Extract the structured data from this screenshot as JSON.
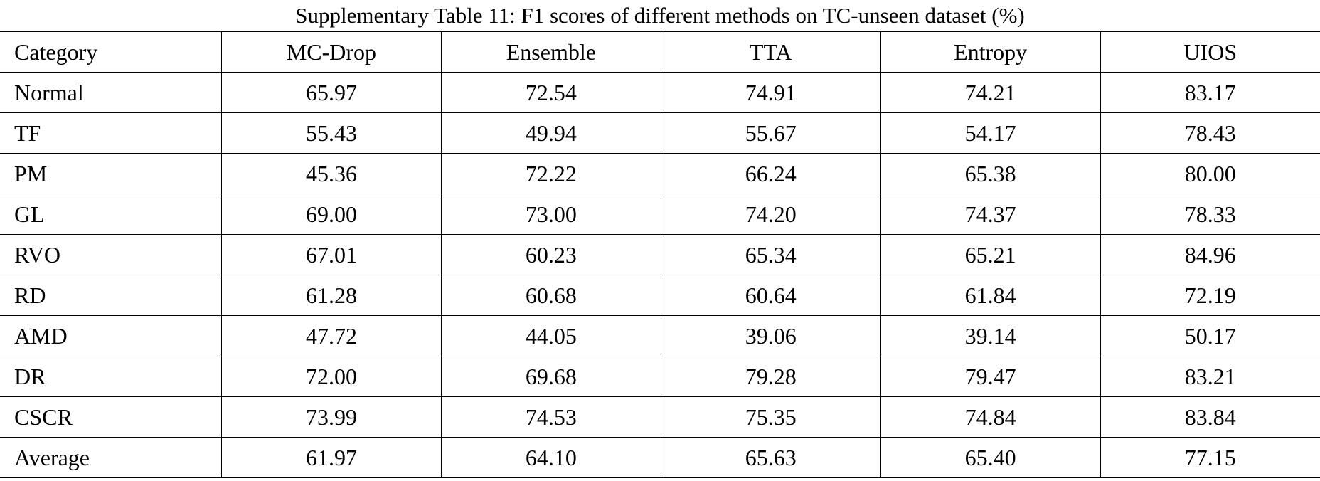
{
  "title": "Supplementary Table 11: F1 scores of different methods on TC-unseen dataset (%)",
  "table": {
    "columns": [
      "Category",
      "MC-Drop",
      "Ensemble",
      "TTA",
      "Entropy",
      "UIOS"
    ],
    "rows": [
      [
        "Normal",
        "65.97",
        "72.54",
        "74.91",
        "74.21",
        "83.17"
      ],
      [
        "TF",
        "55.43",
        "49.94",
        "55.67",
        "54.17",
        "78.43"
      ],
      [
        "PM",
        "45.36",
        "72.22",
        "66.24",
        "65.38",
        "80.00"
      ],
      [
        "GL",
        "69.00",
        "73.00",
        "74.20",
        "74.37",
        "78.33"
      ],
      [
        "RVO",
        "67.01",
        "60.23",
        "65.34",
        "65.21",
        "84.96"
      ],
      [
        "RD",
        "61.28",
        "60.68",
        "60.64",
        "61.84",
        "72.19"
      ],
      [
        "AMD",
        "47.72",
        "44.05",
        "39.06",
        "39.14",
        "50.17"
      ],
      [
        "DR",
        "72.00",
        "69.68",
        "79.28",
        "79.47",
        "83.21"
      ],
      [
        "CSCR",
        "73.99",
        "74.53",
        "75.35",
        "74.84",
        "83.84"
      ],
      [
        "Average",
        "61.97",
        "64.10",
        "65.63",
        "65.40",
        "77.15"
      ]
    ]
  }
}
